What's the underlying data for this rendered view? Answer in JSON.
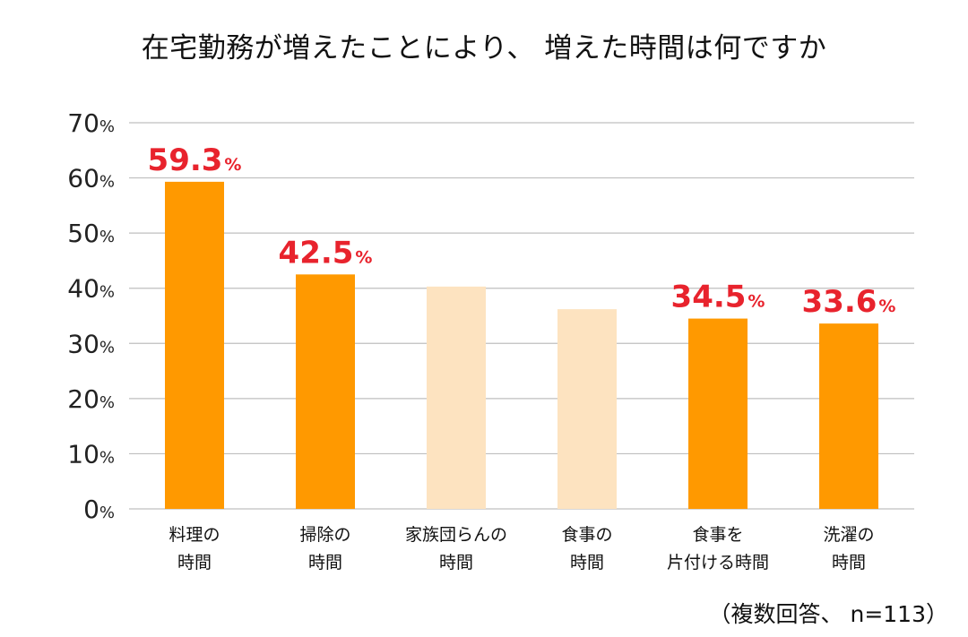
{
  "chart_data": {
    "type": "bar",
    "title": "在宅勤務が増えたことにより、 増えた時間は何ですか",
    "categories": [
      [
        "料理の",
        "時間"
      ],
      [
        "掃除の",
        "時間"
      ],
      [
        "家族団らんの",
        "時間"
      ],
      [
        "食事の",
        "時間"
      ],
      [
        "食事を",
        "片付ける時間"
      ],
      [
        "洗濯の",
        "時間"
      ]
    ],
    "values": [
      59.3,
      42.5,
      40.3,
      36.2,
      34.5,
      33.6
    ],
    "data_labels": [
      "59.3",
      "42.5",
      null,
      null,
      "34.5",
      "33.6"
    ],
    "label_unit": "%",
    "highlighted": [
      true,
      true,
      false,
      false,
      true,
      true
    ],
    "yticks": [
      0,
      10,
      20,
      30,
      40,
      50,
      60,
      70
    ],
    "ytick_unit": "%",
    "ylim": [
      0,
      70
    ],
    "grid": true,
    "colors": {
      "highlight": "#ff9900",
      "muted": "#fde3c0",
      "label": "#e8232d",
      "grid": "#bfbfbf"
    }
  },
  "footnote": "（複数回答、 n=113）"
}
